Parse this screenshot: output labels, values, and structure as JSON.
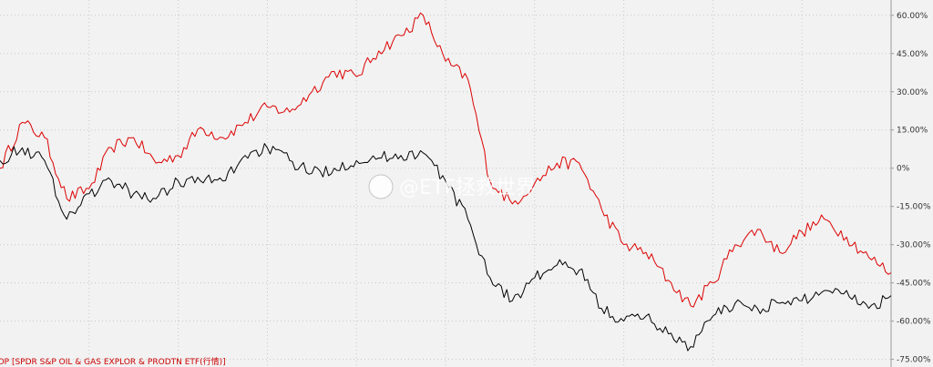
{
  "chart_data": {
    "type": "line",
    "title": "",
    "xlabel": "",
    "ylabel": "",
    "ylim": [
      -78,
      66
    ],
    "y_ticks": [
      {
        "value": 60,
        "label": "60.00%"
      },
      {
        "value": 45,
        "label": "45.00%"
      },
      {
        "value": 30,
        "label": "30.00%"
      },
      {
        "value": 15,
        "label": "15.00%"
      },
      {
        "value": 0,
        "label": "0%"
      },
      {
        "value": -15,
        "label": "-15.00%"
      },
      {
        "value": -30,
        "label": "-30.00%"
      },
      {
        "value": -45,
        "label": "-45.00%"
      },
      {
        "value": -60,
        "label": "-60.00%"
      },
      {
        "value": -75,
        "label": "-75.00%"
      }
    ],
    "x": [
      0,
      5,
      10,
      15,
      20,
      25,
      30,
      35,
      40,
      45,
      50,
      55,
      60,
      65,
      70,
      75,
      80,
      85,
      90,
      95,
      100,
      105,
      110,
      115,
      120,
      125,
      130,
      135,
      140,
      145,
      150,
      155,
      160,
      165,
      170,
      175,
      180,
      185,
      190,
      195,
      200
    ],
    "grid": true,
    "legend_position": "bottom-left",
    "series": [
      {
        "name": "XOP [SPDR S&P OIL & GAS EXPLOR & PRODTN ETF(行情)]",
        "color": "#dd0000",
        "values": [
          0,
          18,
          12,
          -12,
          -8,
          8,
          12,
          2,
          5,
          16,
          12,
          18,
          24,
          22,
          30,
          38,
          36,
          46,
          52,
          60,
          42,
          35,
          -5,
          -14,
          -6,
          2,
          2,
          -16,
          -30,
          -33,
          -44,
          -54,
          -45,
          -30,
          -24,
          -33,
          -25,
          -20,
          -27,
          -35,
          -41
        ]
      },
      {
        "name": "",
        "color": "#000000",
        "values": [
          3,
          8,
          3,
          -20,
          -10,
          -5,
          -10,
          -12,
          -5,
          -5,
          -5,
          5,
          8,
          3,
          -2,
          0,
          3,
          4,
          5,
          6,
          -5,
          -20,
          -43,
          -52,
          -43,
          -38,
          -40,
          -55,
          -60,
          -58,
          -65,
          -70,
          -58,
          -53,
          -55,
          -53,
          -52,
          -48,
          -48,
          -55,
          -50
        ]
      }
    ]
  },
  "legend": {
    "text": "XOP [SPDR S&P OIL & GAS EXPLOR & PRODTN ETF(行情)]",
    "color": "#cc0000"
  },
  "watermark": {
    "text": "@ETF拯救世界"
  },
  "colors": {
    "background": "#f2f2f2",
    "grid": "#c8c8c8",
    "axis": "#999999"
  }
}
